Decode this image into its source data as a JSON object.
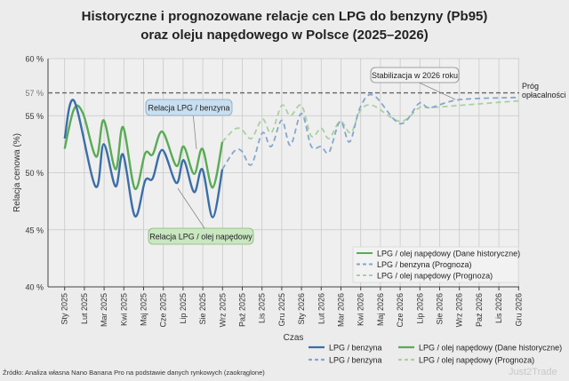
{
  "chart_data": {
    "type": "line",
    "title": "Historyczne i prognozowane relacje cen LPG do benzyny (Pb95)",
    "subtitle": "oraz oleju napędowego w Polsce (2025–2026)",
    "xlabel": "Czas",
    "ylabel": "Relacja cenowa (%)",
    "ylim": [
      40,
      60
    ],
    "yticks": [
      "40 %",
      "45 %",
      "50 %",
      "55 %",
      "57 %",
      "60 %"
    ],
    "ytick_values": [
      40,
      45,
      50,
      55,
      57,
      60
    ],
    "categories": [
      "Sty 2025",
      "Lut 2025",
      "Mar 2025",
      "Kwi 2025",
      "Maj 2025",
      "Cze 2025",
      "Lip 2025",
      "Sie 2025",
      "Wrz 2025",
      "Paź 2025",
      "Lis 2025",
      "Gru 2025",
      "Sty 2026",
      "Lut 2026",
      "Mar 2026",
      "Kwi 2026",
      "Maj 2026",
      "Cze 2026",
      "Lip 2026",
      "Sie 2026",
      "Wrz 2026",
      "Paź 2026",
      "Lis 2026",
      "Gru 2026"
    ],
    "x_unit": "month index from Sty 2025",
    "grid": true,
    "threshold": {
      "value": 57,
      "label": "Próg opłacalności"
    },
    "series": [
      {
        "name": "LPG / benzyna",
        "style": "solid",
        "color": "#3b6ea8",
        "x": [
          0,
          0.48,
          1.56,
          1.98,
          2.58,
          2.96,
          3.56,
          4.08,
          4.46,
          4.95,
          5.66,
          6.03,
          6.56,
          6.98,
          7.5,
          7.99
        ],
        "y": [
          53.0,
          56.3,
          48.8,
          52.5,
          48.8,
          51.6,
          46.2,
          49.3,
          49.5,
          52.0,
          49.1,
          51.1,
          48.3,
          50.3,
          46.1,
          50.3
        ]
      },
      {
        "name": "LPG / olej napędowy (Dane historyczne)",
        "style": "solid",
        "color": "#5aab55",
        "x": [
          0,
          0.48,
          0.93,
          1.6,
          1.98,
          2.58,
          2.96,
          3.56,
          4.08,
          4.46,
          4.95,
          5.66,
          6.03,
          6.56,
          6.98,
          7.5,
          7.99
        ],
        "y": [
          52.1,
          55.6,
          55.2,
          51.4,
          54.6,
          50.3,
          54.0,
          48.6,
          51.7,
          51.6,
          53.6,
          50.6,
          52.3,
          49.9,
          52.1,
          48.7,
          52.7
        ]
      },
      {
        "name": "LPG / benzyna (Prognoza)",
        "style": "dashed",
        "color": "#86a6cc",
        "x": [
          7.99,
          8.6,
          8.97,
          9.46,
          10.02,
          10.47,
          11.0,
          11.44,
          12.0,
          12.5,
          13.0,
          13.4,
          13.96,
          14.44,
          14.97,
          15.64,
          17.0,
          17.97,
          18.5,
          20,
          23
        ],
        "y": [
          50.3,
          51.9,
          51.9,
          50.7,
          53.5,
          52.3,
          54.6,
          52.4,
          55.2,
          52.3,
          52.3,
          51.8,
          54.5,
          52.7,
          55.7,
          56.8,
          54.3,
          56.1,
          55.7,
          56.4,
          56.6
        ]
      },
      {
        "name": "LPG / olej napędowy (Prognoza)",
        "style": "dashed",
        "color": "#a9d19f",
        "x": [
          7.99,
          8.6,
          8.97,
          9.46,
          10.02,
          10.47,
          11.0,
          11.44,
          12.0,
          12.5,
          13.0,
          13.4,
          13.96,
          14.5,
          14.97,
          15.6,
          17.0,
          17.97,
          18.5,
          20,
          23
        ],
        "y": [
          52.7,
          53.8,
          53.8,
          53.0,
          54.7,
          53.5,
          55.9,
          55.0,
          55.9,
          53.2,
          53.9,
          53.0,
          54.5,
          53.5,
          55.4,
          55.9,
          54.5,
          55.7,
          55.7,
          55.9,
          56.3
        ]
      }
    ],
    "annotations": [
      "Relacja LPG / benzyna",
      "Relacja LPG / olej napędowy",
      "Stabilizacja w 2026 roku"
    ],
    "legend_inner": {
      "placement": "bottom-right",
      "entries": [
        "LPG / olej napędowy (Dane historyczne)",
        "LPG / benzyna (Prognoza)",
        "LPG / olej napędowy (Prognoza)"
      ]
    },
    "legend_bottom": {
      "placement": "bottom",
      "entries": [
        "LPG / benzyna",
        "LPG / olej napędowy (Dane historyczne)",
        "LPG / benzyna",
        "LPG / olej napędowy (Prognoza)"
      ]
    }
  },
  "source": "Źródło: Analiza własna Nano Banana Pro na podstawie danych rynkowych (zaokrąglone)",
  "watermark": "Just2Trade"
}
